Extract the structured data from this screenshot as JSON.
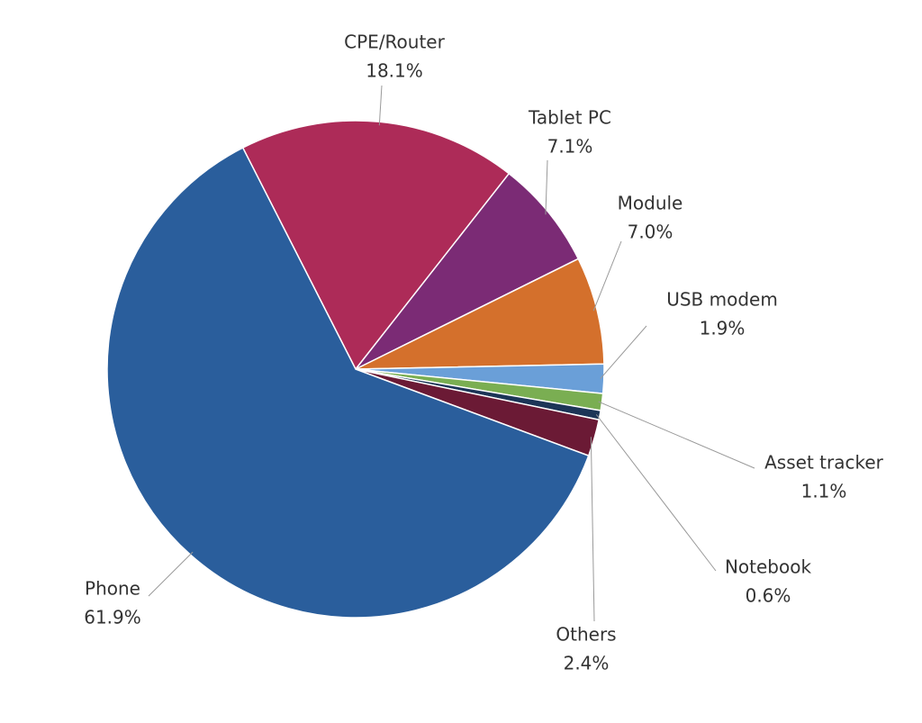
{
  "chart_data": {
    "type": "pie",
    "categories": [
      "CPE/Router",
      "Tablet PC",
      "Module",
      "USB modem",
      "Asset tracker",
      "Notebook",
      "Others",
      "Phone"
    ],
    "values": [
      18.1,
      7.1,
      7.0,
      1.9,
      1.1,
      0.6,
      2.4,
      61.9
    ],
    "value_labels": [
      "18.1%",
      "7.1%",
      "7.0%",
      "1.9%",
      "1.1%",
      "0.6%",
      "2.4%",
      "61.9%"
    ],
    "colors": [
      "#ad2b58",
      "#7b2b75",
      "#d4702c",
      "#6a9fd8",
      "#7aae52",
      "#1c3557",
      "#6b1a35",
      "#2a5e9c"
    ]
  }
}
